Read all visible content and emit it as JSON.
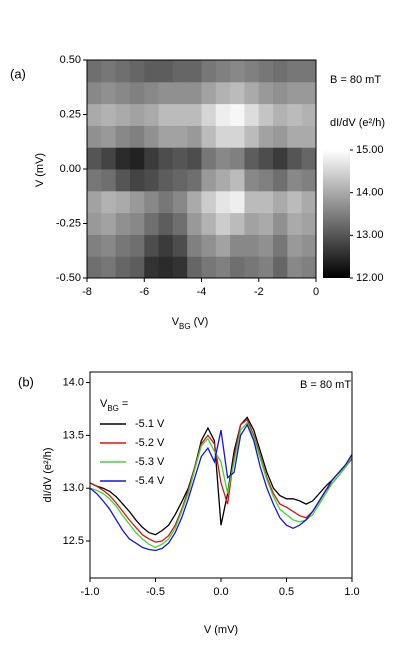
{
  "chart_data": [
    {
      "type": "heatmap",
      "panel_label": "(a)",
      "annotation": "B = 80 mT",
      "xlabel": [
        "V",
        "BG",
        "(V)"
      ],
      "ylabel": "V (mV)",
      "x": [
        -7.75,
        -7.25,
        -6.75,
        -6.25,
        -5.75,
        -5.25,
        -4.75,
        -4.25,
        -3.75,
        -3.25,
        -2.75,
        -2.25,
        -1.75,
        -1.25,
        -0.75,
        -0.25
      ],
      "y": [
        -0.45,
        -0.35,
        -0.25,
        -0.15,
        -0.05,
        0.05,
        0.15,
        0.25,
        0.35,
        0.45
      ],
      "z": [
        [
          13.3,
          13.4,
          13.2,
          13.1,
          12.6,
          12.5,
          12.6,
          13.2,
          13.4,
          13.5,
          13.3,
          13.4,
          13.5,
          13.2,
          13.6,
          13.5
        ],
        [
          13.5,
          13.6,
          13.4,
          13.3,
          12.9,
          12.7,
          12.9,
          13.5,
          13.7,
          13.9,
          13.6,
          13.6,
          13.7,
          13.4,
          13.8,
          13.7
        ],
        [
          13.8,
          13.9,
          13.7,
          13.6,
          13.3,
          13.1,
          13.3,
          13.8,
          14.1,
          14.4,
          14.2,
          13.9,
          14.0,
          13.7,
          14.0,
          13.9
        ],
        [
          13.9,
          14.1,
          14.0,
          13.8,
          13.6,
          13.4,
          13.6,
          14.0,
          14.4,
          14.7,
          14.8,
          14.2,
          14.2,
          14.0,
          14.2,
          14.0
        ],
        [
          13.4,
          13.3,
          13.0,
          12.8,
          12.9,
          13.1,
          13.2,
          13.3,
          13.8,
          14.0,
          14.2,
          13.6,
          13.5,
          13.3,
          13.6,
          13.5
        ],
        [
          13.0,
          12.8,
          12.5,
          12.4,
          12.7,
          12.9,
          13.0,
          12.9,
          13.4,
          13.6,
          13.5,
          13.1,
          12.9,
          12.7,
          13.0,
          13.2
        ],
        [
          13.7,
          13.8,
          13.6,
          13.5,
          13.7,
          13.9,
          13.9,
          13.8,
          14.2,
          14.5,
          14.5,
          14.2,
          13.9,
          13.8,
          14.0,
          14.0
        ],
        [
          14.0,
          14.1,
          14.0,
          13.9,
          14.0,
          14.2,
          14.2,
          14.2,
          14.5,
          14.8,
          14.9,
          14.6,
          14.3,
          14.1,
          14.2,
          14.1
        ],
        [
          13.6,
          13.7,
          13.6,
          13.5,
          13.6,
          13.7,
          13.7,
          13.7,
          13.9,
          14.1,
          14.2,
          14.0,
          13.8,
          13.7,
          13.8,
          13.8
        ],
        [
          13.3,
          13.4,
          13.3,
          13.2,
          13.1,
          13.1,
          13.2,
          13.2,
          13.4,
          13.5,
          13.6,
          13.5,
          13.4,
          13.3,
          13.4,
          13.4
        ]
      ],
      "xlim": [
        -8,
        0
      ],
      "xticks": [
        -8,
        -6,
        -4,
        -2,
        0
      ],
      "ylim": [
        -0.5,
        0.5
      ],
      "yticks": [
        {
          "value": 0.5,
          "label": "0.50"
        },
        {
          "value": 0.25,
          "label": "0.25"
        },
        {
          "value": 0,
          "label": "0.00"
        },
        {
          "value": -0.25,
          "label": "-0.25"
        },
        {
          "value": -0.5,
          "label": "-0.50"
        }
      ],
      "colorbar": {
        "label": "dI/dV (e²/h)",
        "clim": [
          12,
          15
        ],
        "ticks": [
          {
            "value": 15,
            "label": "15.00"
          },
          {
            "value": 14,
            "label": "14.00"
          },
          {
            "value": 13,
            "label": "13.00"
          },
          {
            "value": 12,
            "label": "12.00"
          }
        ]
      }
    },
    {
      "type": "line",
      "panel_label": "(b)",
      "annotation": "B = 80 mT",
      "xlabel": "V (mV)",
      "ylabel": "dI/dV (e²/h)",
      "legend_title": [
        "V",
        "BG",
        "="
      ],
      "x": [
        -1.0,
        -0.95,
        -0.9,
        -0.85,
        -0.8,
        -0.75,
        -0.7,
        -0.65,
        -0.6,
        -0.55,
        -0.5,
        -0.45,
        -0.4,
        -0.35,
        -0.3,
        -0.25,
        -0.2,
        -0.15,
        -0.1,
        -0.05,
        0.0,
        0.05,
        0.1,
        0.15,
        0.2,
        0.25,
        0.3,
        0.35,
        0.4,
        0.45,
        0.5,
        0.55,
        0.6,
        0.65,
        0.7,
        0.75,
        0.8,
        0.85,
        0.9,
        0.95,
        1.0
      ],
      "series": [
        {
          "name": "-5.1 V",
          "color": "#000000",
          "values": [
            13.05,
            13.02,
            13.0,
            12.97,
            12.92,
            12.85,
            12.78,
            12.7,
            12.63,
            12.58,
            12.56,
            12.6,
            12.65,
            12.75,
            12.87,
            13.0,
            13.2,
            13.45,
            13.57,
            13.45,
            12.65,
            12.95,
            13.35,
            13.6,
            13.67,
            13.55,
            13.35,
            13.15,
            13.0,
            12.93,
            12.9,
            12.9,
            12.88,
            12.85,
            12.88,
            12.95,
            13.02,
            13.08,
            13.15,
            13.22,
            13.3
          ]
        },
        {
          "name": "-5.2 V",
          "color": "#e01010",
          "values": [
            13.05,
            13.02,
            12.98,
            12.93,
            12.86,
            12.78,
            12.7,
            12.63,
            12.56,
            12.52,
            12.49,
            12.5,
            12.55,
            12.65,
            12.8,
            12.98,
            13.2,
            13.42,
            13.5,
            13.42,
            13.05,
            12.85,
            13.3,
            13.6,
            13.65,
            13.5,
            13.3,
            13.1,
            12.95,
            12.85,
            12.82,
            12.78,
            12.74,
            12.72,
            12.78,
            12.88,
            12.98,
            13.05,
            13.12,
            13.2,
            13.28
          ]
        },
        {
          "name": "-5.3 V",
          "color": "#33dd33",
          "values": [
            13.0,
            12.98,
            12.95,
            12.9,
            12.83,
            12.74,
            12.66,
            12.58,
            12.52,
            12.47,
            12.44,
            12.47,
            12.52,
            12.62,
            12.78,
            12.95,
            13.18,
            13.4,
            13.47,
            13.35,
            13.25,
            12.95,
            13.25,
            13.55,
            13.62,
            13.48,
            13.28,
            13.08,
            12.92,
            12.8,
            12.75,
            12.7,
            12.68,
            12.7,
            12.75,
            12.85,
            12.95,
            13.05,
            13.12,
            13.2,
            13.3
          ]
        },
        {
          "name": "-5.4 V",
          "color": "#1515e0",
          "values": [
            13.0,
            12.95,
            12.88,
            12.8,
            12.7,
            12.6,
            12.52,
            12.48,
            12.44,
            12.42,
            12.41,
            12.43,
            12.48,
            12.58,
            12.72,
            12.9,
            13.1,
            13.3,
            13.38,
            13.25,
            13.55,
            13.1,
            13.15,
            13.5,
            13.6,
            13.45,
            13.2,
            13.0,
            12.85,
            12.72,
            12.65,
            12.62,
            12.65,
            12.7,
            12.78,
            12.88,
            12.98,
            13.08,
            13.15,
            13.22,
            13.32
          ]
        }
      ],
      "xlim": [
        -1,
        1
      ],
      "xticks": [
        {
          "value": -1,
          "label": "-1.0"
        },
        -0.5,
        {
          "value": 0,
          "label": "0.0"
        },
        0.5,
        {
          "value": 1,
          "label": "1.0"
        }
      ],
      "ylim": [
        12.15,
        14.1
      ],
      "yticks": [
        12.5,
        {
          "value": 13,
          "label": "13.0"
        },
        13.5,
        {
          "value": 14,
          "label": "14.0"
        }
      ]
    }
  ]
}
